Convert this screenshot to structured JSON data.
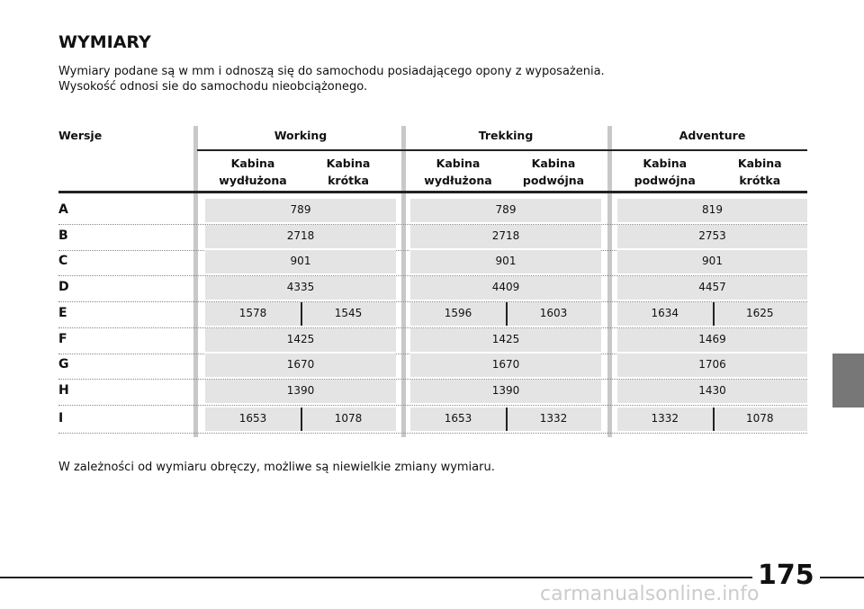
{
  "header": {
    "title": "WYMIARY",
    "intro": [
      "Wymiary podane są w mm i odnoszą się do samochodu posiadającego opony z wyposażenia.",
      "Wysokość odnosi sie do samochodu nieobciążonego."
    ]
  },
  "table": {
    "corner": "Wersje",
    "groups": [
      {
        "name": "Working",
        "columns": [
          "Kabina\nwydłużona",
          "Kabina\nkrótka"
        ]
      },
      {
        "name": "Trekking",
        "columns": [
          "Kabina\nwydłużona",
          "Kabina\npodwójna"
        ]
      },
      {
        "name": "Adventure",
        "columns": [
          "Kabina\npodwójna",
          "Kabina\nkrótka"
        ]
      }
    ],
    "rows": [
      {
        "label": "A",
        "cells": [
          [
            789
          ],
          [
            789
          ],
          [
            819
          ]
        ]
      },
      {
        "label": "B",
        "cells": [
          [
            2718
          ],
          [
            2718
          ],
          [
            2753
          ]
        ]
      },
      {
        "label": "C",
        "cells": [
          [
            901
          ],
          [
            901
          ],
          [
            901
          ]
        ]
      },
      {
        "label": "D",
        "cells": [
          [
            4335
          ],
          [
            4409
          ],
          [
            4457
          ]
        ]
      },
      {
        "label": "E",
        "cells": [
          [
            1578,
            1545
          ],
          [
            1596,
            1603
          ],
          [
            1634,
            1625
          ]
        ]
      },
      {
        "label": "F",
        "cells": [
          [
            1425
          ],
          [
            1425
          ],
          [
            1469
          ]
        ]
      },
      {
        "label": "G",
        "cells": [
          [
            1670
          ],
          [
            1670
          ],
          [
            1706
          ]
        ]
      },
      {
        "label": "H",
        "cells": [
          [
            1390
          ],
          [
            1390
          ],
          [
            1430
          ]
        ]
      },
      {
        "label": "I",
        "cells": [
          [
            1653,
            1078
          ],
          [
            1653,
            1332
          ],
          [
            1332,
            1078
          ]
        ]
      }
    ]
  },
  "footnote": "W zależności od wymiaru obręczy, możliwe są niewielkie zmiany wymiaru.",
  "page_number": "175",
  "watermark": "carmanualsonline.info"
}
